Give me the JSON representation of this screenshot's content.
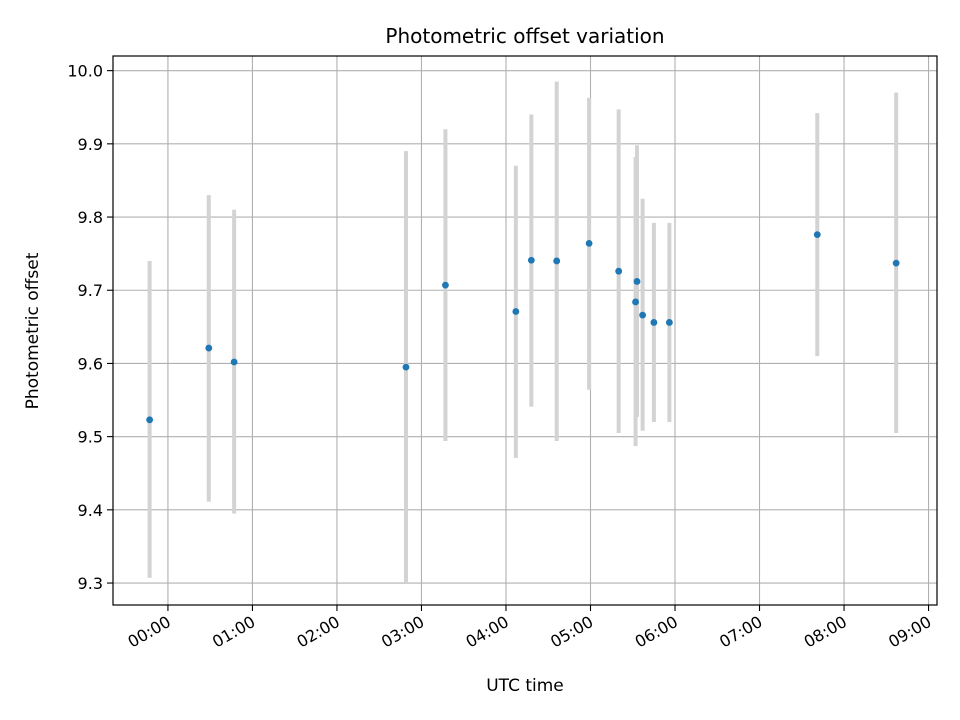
{
  "chart_data": {
    "type": "scatter",
    "title": "Photometric offset variation",
    "xlabel": "UTC time",
    "ylabel": "Photometric offset",
    "xlim": [
      "-00:39",
      "09:06"
    ],
    "ylim": [
      9.27,
      10.02
    ],
    "x_ticks": [
      "00:00",
      "01:00",
      "02:00",
      "03:00",
      "04:00",
      "05:00",
      "06:00",
      "07:00",
      "08:00",
      "09:00"
    ],
    "y_ticks": [
      "9.3",
      "9.4",
      "9.5",
      "9.6",
      "9.7",
      "9.8",
      "9.9",
      "10.0"
    ],
    "grid": true,
    "error_bar_color": "#d3d3d3",
    "point_color": "#1f77b4",
    "series": [
      {
        "x": [
          "-00:13",
          "00:29",
          "00:47",
          "02:49",
          "03:17",
          "04:07",
          "04:18",
          "04:36",
          "04:59",
          "05:20",
          "05:32",
          "05:33",
          "05:37",
          "05:45",
          "05:56",
          "07:41",
          "08:37"
        ],
        "y": [
          9.523,
          9.621,
          9.602,
          9.595,
          9.707,
          9.671,
          9.741,
          9.74,
          9.764,
          9.726,
          9.684,
          9.712,
          9.666,
          9.656,
          9.656,
          9.776,
          9.737
        ],
        "y_low": [
          9.307,
          9.411,
          9.395,
          9.3,
          9.494,
          9.471,
          9.541,
          9.494,
          9.564,
          9.505,
          9.487,
          9.527,
          9.508,
          9.52,
          9.52,
          9.61,
          9.505
        ],
        "y_high": [
          9.74,
          9.83,
          9.81,
          9.89,
          9.92,
          9.87,
          9.94,
          9.985,
          9.963,
          9.947,
          9.882,
          9.898,
          9.825,
          9.792,
          9.792,
          9.942,
          9.97
        ]
      }
    ]
  }
}
